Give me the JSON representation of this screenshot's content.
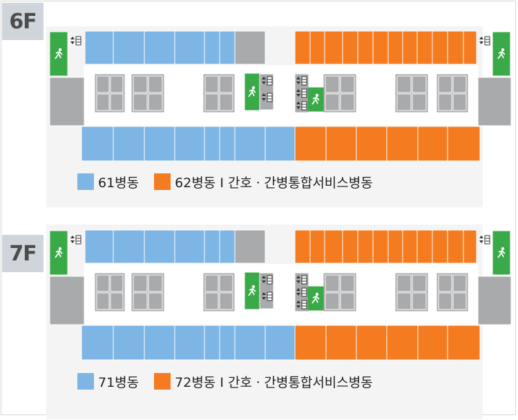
{
  "colors": {
    "ward_blue": "#7db5e4",
    "ward_orange": "#f47b20",
    "room_gray": "#a8aaac",
    "exit_green": "#3aaa48",
    "corridor": "#ffffff"
  },
  "icons": {
    "exit": "emergency-exit-icon",
    "elevator": "elevator-icon"
  },
  "floors": [
    {
      "label": "6F",
      "legend": [
        {
          "color": "#7db5e4",
          "text": "61병동"
        },
        {
          "color": "#f47b20",
          "text": "62병동 I 간호ㆍ간병통합서비스병동"
        }
      ]
    },
    {
      "label": "7F",
      "legend": [
        {
          "color": "#7db5e4",
          "text": "71병동"
        },
        {
          "color": "#f47b20",
          "text": "72병동 I 간호ㆍ간병통합서비스병동"
        }
      ]
    }
  ]
}
